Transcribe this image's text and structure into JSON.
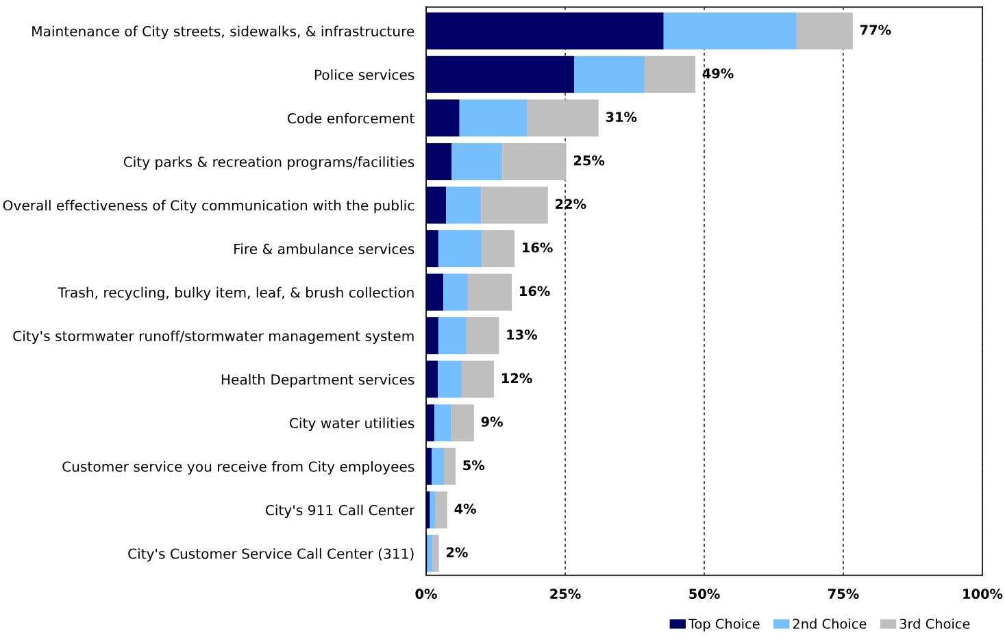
{
  "chart_data": {
    "type": "bar",
    "orientation": "horizontal",
    "stacked": true,
    "categories": [
      "Maintenance of City streets, sidewalks, & infrastructure",
      "Police services",
      "Code enforcement",
      "City parks & recreation programs/facilities",
      "Overall effectiveness of City communication with the public",
      "Fire & ambulance services",
      "Trash, recycling, bulky item, leaf, & brush collection",
      "City's stormwater runoff/stormwater management system",
      "Health Department services",
      "City water utilities",
      "Customer service you receive from City employees",
      "City's 911 Call Center",
      "City's Customer Service Call Center (311)"
    ],
    "series": [
      {
        "name": "Top Choice",
        "color": "#000066",
        "values": [
          42.7,
          26.6,
          6.0,
          4.6,
          3.6,
          2.2,
          3.1,
          2.2,
          2.1,
          1.5,
          1.0,
          0.7,
          0.2
        ]
      },
      {
        "name": "2nd Choice",
        "color": "#75bfff",
        "values": [
          24.0,
          12.7,
          12.2,
          9.1,
          6.3,
          7.8,
          4.4,
          5.1,
          4.3,
          3.1,
          2.2,
          1.0,
          1.0
        ]
      },
      {
        "name": "3rd Choice",
        "color": "#bfbfbf",
        "values": [
          10.0,
          9.1,
          12.8,
          11.5,
          12.0,
          5.9,
          7.9,
          5.8,
          5.8,
          4.0,
          2.1,
          2.1,
          1.1
        ]
      }
    ],
    "totals": [
      "77%",
      "49%",
      "31%",
      "25%",
      "22%",
      "16%",
      "16%",
      "13%",
      "12%",
      "9%",
      "5%",
      "4%",
      "2%"
    ],
    "xlim": [
      0,
      100
    ],
    "xticks": [
      {
        "value": 0,
        "label": "0%"
      },
      {
        "value": 25,
        "label": "25%"
      },
      {
        "value": 50,
        "label": "50%"
      },
      {
        "value": 75,
        "label": "75%"
      },
      {
        "value": 100,
        "label": "100%"
      }
    ],
    "grid": "x",
    "line_style": "dashed",
    "legend": "bottom"
  }
}
